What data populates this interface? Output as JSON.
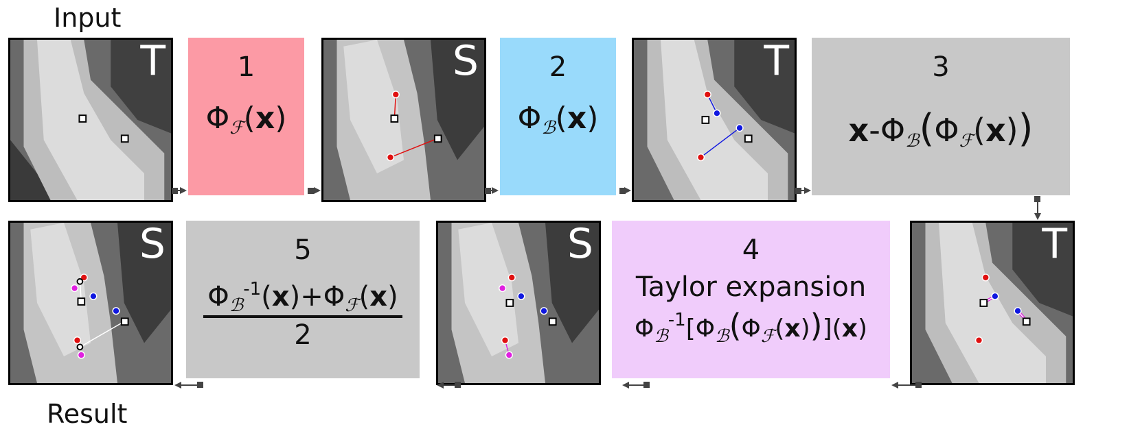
{
  "captions": {
    "input": "Input",
    "result": "Result"
  },
  "panels": [
    {
      "letter": "T"
    },
    {
      "letter": "S"
    },
    {
      "letter": "T"
    },
    {
      "letter": "T"
    },
    {
      "letter": "S"
    },
    {
      "letter": "S"
    }
  ],
  "steps": {
    "step1": {
      "number": "1",
      "phi": "Φ",
      "sub": "ℱ",
      "arg": "(",
      "x": "x",
      "close": ")"
    },
    "step2": {
      "number": "2",
      "phi": "Φ",
      "sub": "ℬ",
      "arg": "(",
      "x": "x",
      "close": ")"
    },
    "step3": {
      "number": "3",
      "x": "x",
      "minus": "-",
      "phi_b": "Φ",
      "sub_b": "ℬ",
      "phi_f": "Φ",
      "sub_f": "ℱ"
    },
    "step4": {
      "number": "4",
      "label": "Taylor expansion",
      "phi": "Φ",
      "sub_b": "ℬ",
      "sup": "-1",
      "sub_f": "ℱ"
    },
    "step5": {
      "number": "5",
      "phi": "Φ",
      "sub_b": "ℬ",
      "sup": "-1",
      "sub_f": "ℱ",
      "denominator": "2"
    }
  },
  "colors": {
    "step1_bg": "#fc9aa5",
    "step2_bg": "#99dafb",
    "step3_bg": "#c8c8c8",
    "step4_bg": "#f0ccfb",
    "step5_bg": "#c8c8c8",
    "arrow": "#444444",
    "red_point": "#e01010",
    "blue_point": "#1018e0",
    "magenta_point": "#e020e0"
  }
}
